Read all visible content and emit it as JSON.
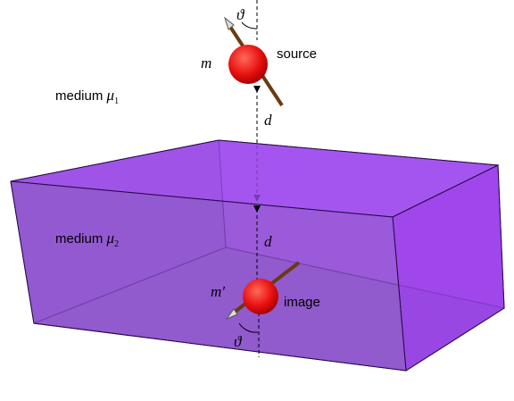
{
  "source": {
    "moment": "m",
    "angle": "ϑ",
    "label": "source"
  },
  "medium_1": {
    "text": "medium",
    "symbol": "μ",
    "subscript": "1"
  },
  "distance_upper": "d",
  "medium_2": {
    "text": "medium",
    "symbol": "μ",
    "subscript": "2"
  },
  "distance_lower": "d",
  "image": {
    "moment": "m'",
    "angle": "ϑ",
    "label": "image"
  }
}
